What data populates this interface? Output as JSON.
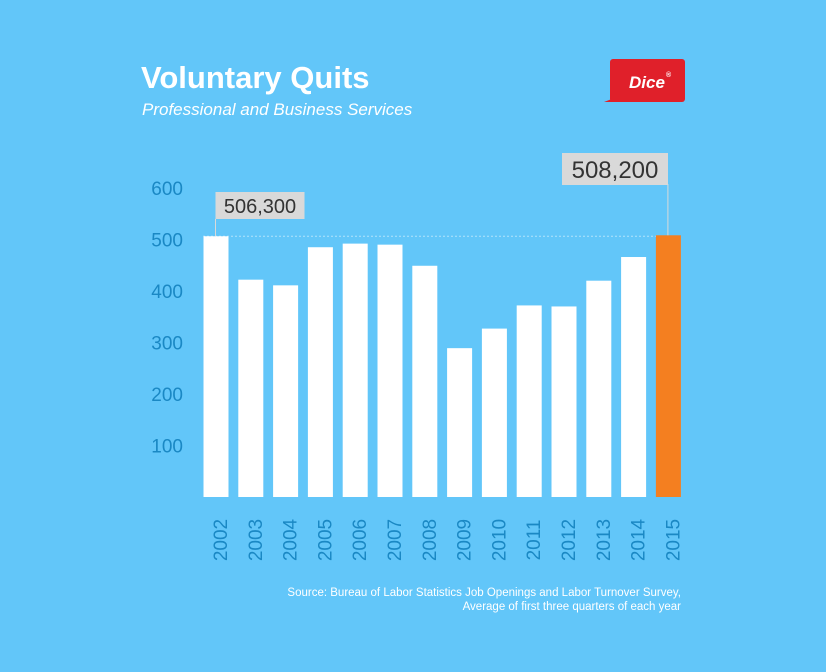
{
  "header": {
    "title": "Voluntary Quits",
    "subtitle": "Professional and Business Services"
  },
  "logo": {
    "text": "Dice",
    "mark": "®",
    "color": "#e0202a"
  },
  "colors": {
    "background": "#62c6f9",
    "bar": "#ffffff",
    "highlight": "#f47f20",
    "axis_text": "#1a88c4"
  },
  "chart_data": {
    "type": "bar",
    "categories": [
      "2002",
      "2003",
      "2004",
      "2005",
      "2006",
      "2007",
      "2008",
      "2009",
      "2010",
      "2011",
      "2012",
      "2013",
      "2014",
      "2015"
    ],
    "values": [
      506.3,
      422,
      411,
      485,
      492,
      490,
      449,
      289,
      327,
      372,
      370,
      420,
      466,
      508.2
    ],
    "highlight_category": "2015",
    "yticks": [
      100,
      200,
      300,
      400,
      500,
      600
    ],
    "ylim": [
      0,
      600
    ],
    "grid": false,
    "reference_line": 506.3,
    "annotations": [
      {
        "category": "2002",
        "text": "506,300"
      },
      {
        "category": "2015",
        "text": "508,200"
      }
    ]
  },
  "source": {
    "line1": "Source: Bureau of Labor Statistics Job Openings and Labor Turnover Survey,",
    "line2": "Average of first three quarters of each year"
  }
}
